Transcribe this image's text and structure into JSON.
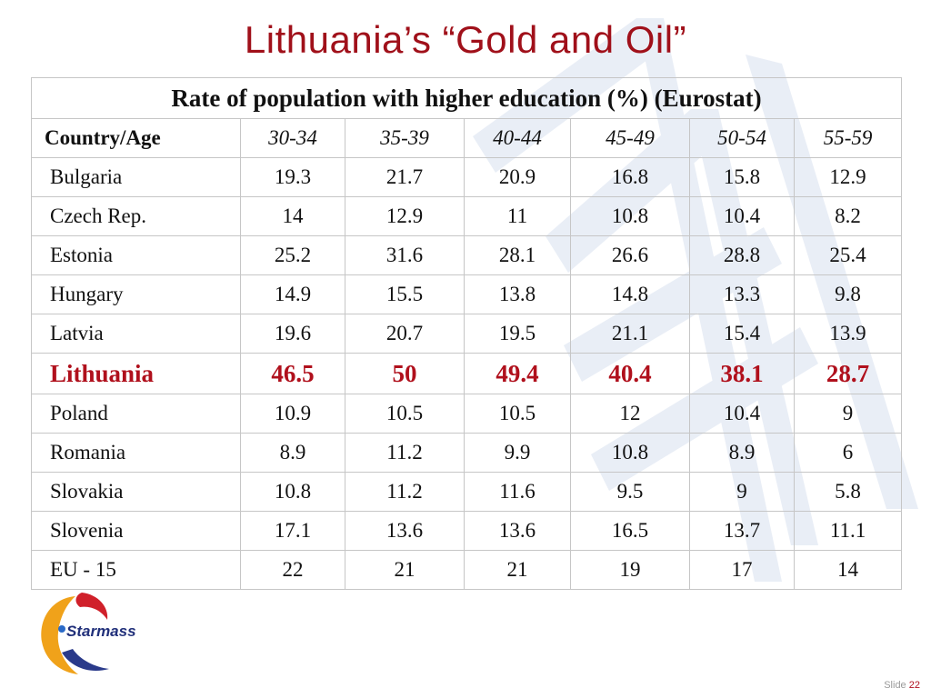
{
  "title": "Lithuania’s “Gold and Oil”",
  "table": {
    "caption": "Rate of population with higher education (%) (Eurostat)",
    "header_first": "Country/Age",
    "age_groups": [
      "30-34",
      "35-39",
      "40-44",
      "45-49",
      "50-54",
      "55-59"
    ],
    "rows": [
      {
        "country": "Bulgaria",
        "values": [
          "19.3",
          "21.7",
          "20.9",
          "16.8",
          "15.8",
          "12.9"
        ]
      },
      {
        "country": "Czech Rep.",
        "values": [
          "14",
          "12.9",
          "11",
          "10.8",
          "10.4",
          "8.2"
        ]
      },
      {
        "country": "Estonia",
        "values": [
          "25.2",
          "31.6",
          "28.1",
          "26.6",
          "28.8",
          "25.4"
        ]
      },
      {
        "country": "Hungary",
        "values": [
          "14.9",
          "15.5",
          "13.8",
          "14.8",
          "13.3",
          "9.8"
        ]
      },
      {
        "country": "Latvia",
        "values": [
          "19.6",
          "20.7",
          "19.5",
          "21.1",
          "15.4",
          "13.9"
        ]
      },
      {
        "country": "Lithuania",
        "values": [
          "46.5",
          "50",
          "49.4",
          "40.4",
          "38.1",
          "28.7"
        ],
        "highlight": true
      },
      {
        "country": "Poland",
        "values": [
          "10.9",
          "10.5",
          "10.5",
          "12",
          "10.4",
          "9"
        ]
      },
      {
        "country": "Romania",
        "values": [
          "8.9",
          "11.2",
          "9.9",
          "10.8",
          "8.9",
          "6"
        ]
      },
      {
        "country": "Slovakia",
        "values": [
          "10.8",
          "11.2",
          "11.6",
          "9.5",
          "9",
          "5.8"
        ]
      },
      {
        "country": "Slovenia",
        "values": [
          "17.1",
          "13.6",
          "13.6",
          "16.5",
          "13.7",
          "11.1"
        ]
      },
      {
        "country": "EU - 15",
        "values": [
          "22",
          "21",
          "21",
          "19",
          "17",
          "14"
        ]
      }
    ]
  },
  "logo": {
    "text": "Starmass"
  },
  "footer": {
    "slide_label": "Slide",
    "slide_number": "22"
  },
  "colors": {
    "accent": "#a0101a",
    "highlight_row": "#b0101c",
    "watermark": "#e6ecf5"
  }
}
